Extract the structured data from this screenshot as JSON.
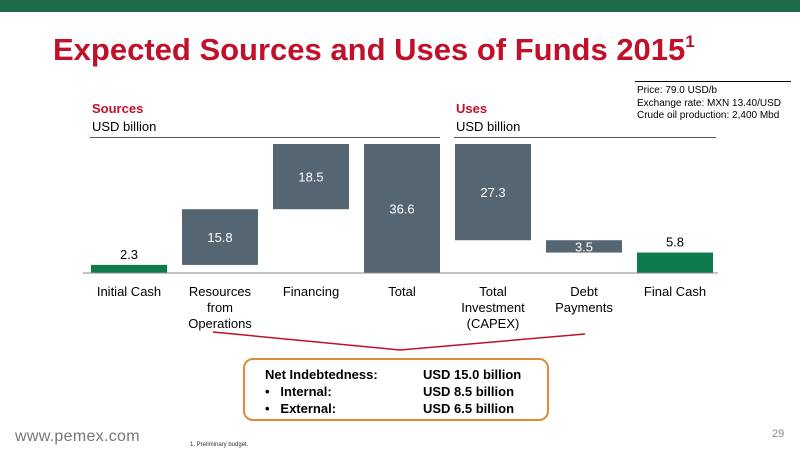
{
  "slide": {
    "title": "Expected Sources and Uses of Funds 2015",
    "title_note": "1",
    "params": [
      "Price: 79.0 USD/b",
      "Exchange rate: MXN 13.40/USD",
      "Crude oil production: 2,400 Mbd"
    ],
    "sources_heading": "Sources",
    "sources_unit": "USD billion",
    "uses_heading": "Uses",
    "uses_unit": "USD billion",
    "footnote": "1.    Preliminary budget.",
    "brand": "www.pemex.com",
    "page_number": "29"
  },
  "summary": {
    "title_label": "Net Indebtedness:",
    "title_value": "USD 15.0 billion",
    "rows": [
      {
        "bullet": "•",
        "label": "Internal:",
        "value": "USD 8.5 billion"
      },
      {
        "bullet": "•",
        "label": "External:",
        "value": "USD 6.5 billion"
      }
    ]
  },
  "colors": {
    "title": "#c0102a",
    "top_bar": "#1f6b4a",
    "bar_gray": "#566572",
    "bar_green": "#0f7a4c",
    "highlight_border": "#e08a3a",
    "bracket": "#c0102a"
  },
  "chart_data": {
    "type": "bar",
    "subtype": "waterfall",
    "unit": "USD billion",
    "categories": [
      [
        "Initial Cash"
      ],
      [
        "Resources",
        "from",
        "Operations"
      ],
      [
        "Financing"
      ],
      [
        "Total"
      ],
      [
        "Total",
        "Investment",
        "(CAPEX)"
      ],
      [
        "Debt",
        "Payments"
      ],
      [
        "Final Cash"
      ]
    ],
    "bars": [
      {
        "value": 2.3,
        "start": 0,
        "end": 2.3,
        "color": "green",
        "label": "2.3"
      },
      {
        "value": 15.8,
        "start": 2.3,
        "end": 18.1,
        "color": "gray",
        "label": "15.8"
      },
      {
        "value": 18.5,
        "start": 18.1,
        "end": 36.6,
        "color": "gray",
        "label": "18.5"
      },
      {
        "value": 36.6,
        "start": 0,
        "end": 36.6,
        "color": "gray",
        "label": "36.6"
      },
      {
        "value": 27.3,
        "start": 36.6,
        "end": 9.3,
        "color": "gray",
        "label": "27.3"
      },
      {
        "value": 3.5,
        "start": 9.3,
        "end": 5.8,
        "color": "gray",
        "label": "3.5"
      },
      {
        "value": 5.8,
        "start": 0,
        "end": 5.8,
        "color": "green",
        "label": "5.8"
      }
    ],
    "ylim": [
      0,
      36.6
    ]
  }
}
